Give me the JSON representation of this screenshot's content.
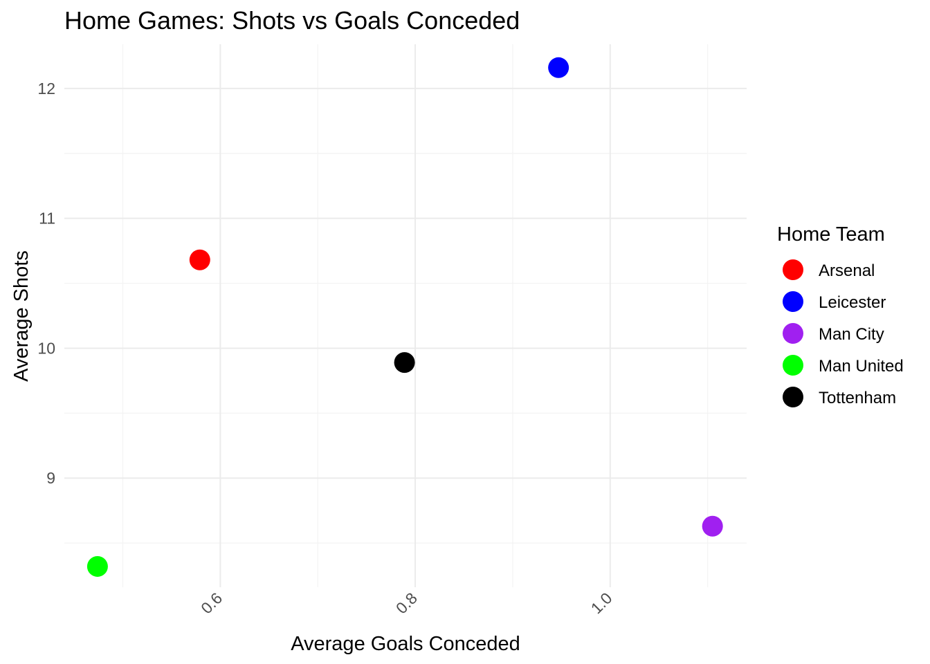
{
  "chart_data": {
    "type": "scatter",
    "title": "Home Games: Shots vs Goals Conceded",
    "xlabel": "Average Goals Conceded",
    "ylabel": "Average Shots",
    "xlim": [
      0.44,
      1.14
    ],
    "ylim": [
      8.16,
      12.34
    ],
    "x_ticks": [
      0.6,
      0.8,
      1.0
    ],
    "x_tick_labels": [
      "0.6",
      "0.8",
      "1.0"
    ],
    "y_ticks": [
      9,
      10,
      11,
      12
    ],
    "y_tick_labels": [
      "9",
      "10",
      "11",
      "12"
    ],
    "grid": true,
    "legend": {
      "title": "Home Team",
      "placement": "right"
    },
    "series": [
      {
        "name": "Arsenal",
        "color": "#ff0000",
        "x": [
          0.579
        ],
        "y": [
          10.68
        ]
      },
      {
        "name": "Leicester",
        "color": "#0000ff",
        "x": [
          0.947
        ],
        "y": [
          12.16
        ]
      },
      {
        "name": "Man City",
        "color": "#a020f0",
        "x": [
          1.105
        ],
        "y": [
          8.63
        ]
      },
      {
        "name": "Man United",
        "color": "#00ff00",
        "x": [
          0.474
        ],
        "y": [
          8.32
        ]
      },
      {
        "name": "Tottenham",
        "color": "#000000",
        "x": [
          0.789
        ],
        "y": [
          9.89
        ]
      }
    ]
  }
}
